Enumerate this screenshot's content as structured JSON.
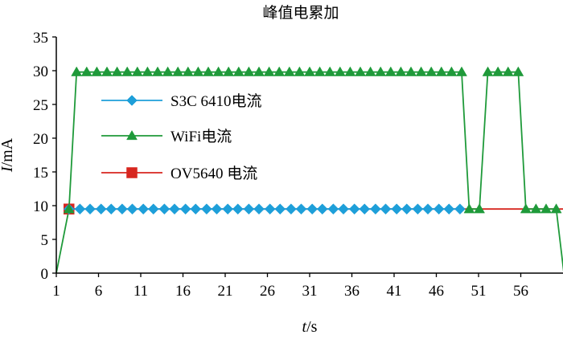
{
  "chart_data": {
    "type": "line",
    "title": "峰值电累加",
    "xlabel": "t/s",
    "ylabel": "I/mA",
    "x_ticks": [
      1,
      6,
      11,
      16,
      21,
      26,
      31,
      36,
      41,
      46,
      51,
      56
    ],
    "y_ticks": [
      0,
      5,
      10,
      15,
      20,
      25,
      30,
      35
    ],
    "xlim": [
      1,
      61
    ],
    "ylim": [
      0,
      35
    ],
    "grid": false,
    "legend": {
      "placement": "center-left"
    },
    "series": [
      {
        "name": "S3C 6410电流",
        "color": "#1e9fd9",
        "marker": "diamond",
        "points": [
          [
            2.5,
            9.5
          ],
          [
            3.8,
            9.5
          ],
          [
            5,
            9.5
          ],
          [
            6.3,
            9.5
          ],
          [
            7.5,
            9.5
          ],
          [
            8.8,
            9.5
          ],
          [
            10,
            9.5
          ],
          [
            11.3,
            9.5
          ],
          [
            12.5,
            9.5
          ],
          [
            13.8,
            9.5
          ],
          [
            15,
            9.5
          ],
          [
            16.3,
            9.5
          ],
          [
            17.5,
            9.5
          ],
          [
            18.8,
            9.5
          ],
          [
            20,
            9.5
          ],
          [
            21.3,
            9.5
          ],
          [
            22.5,
            9.5
          ],
          [
            23.8,
            9.5
          ],
          [
            25,
            9.5
          ],
          [
            26.3,
            9.5
          ],
          [
            27.5,
            9.5
          ],
          [
            28.8,
            9.5
          ],
          [
            30,
            9.5
          ],
          [
            31.3,
            9.5
          ],
          [
            32.5,
            9.5
          ],
          [
            33.8,
            9.5
          ],
          [
            35,
            9.5
          ],
          [
            36.3,
            9.5
          ],
          [
            37.5,
            9.5
          ],
          [
            38.8,
            9.5
          ],
          [
            40,
            9.5
          ],
          [
            41.3,
            9.5
          ],
          [
            42.5,
            9.5
          ],
          [
            43.8,
            9.5
          ],
          [
            45,
            9.5
          ],
          [
            46.3,
            9.5
          ],
          [
            47.5,
            9.5
          ],
          [
            48.8,
            9.5
          ]
        ]
      },
      {
        "name": "WiFi电流",
        "color": "#1f9a3a",
        "marker": "triangle",
        "points": [
          [
            1,
            0
          ],
          [
            2.5,
            9.5
          ],
          [
            3.4,
            29.8
          ],
          [
            4.6,
            29.8
          ],
          [
            5.8,
            29.8
          ],
          [
            7,
            29.8
          ],
          [
            8.2,
            29.8
          ],
          [
            9.4,
            29.8
          ],
          [
            10.6,
            29.8
          ],
          [
            11.8,
            29.8
          ],
          [
            13,
            29.8
          ],
          [
            14.2,
            29.8
          ],
          [
            15.4,
            29.8
          ],
          [
            16.6,
            29.8
          ],
          [
            17.8,
            29.8
          ],
          [
            19,
            29.8
          ],
          [
            20.2,
            29.8
          ],
          [
            21.4,
            29.8
          ],
          [
            22.6,
            29.8
          ],
          [
            23.8,
            29.8
          ],
          [
            25,
            29.8
          ],
          [
            26.2,
            29.8
          ],
          [
            27.4,
            29.8
          ],
          [
            28.6,
            29.8
          ],
          [
            29.8,
            29.8
          ],
          [
            31,
            29.8
          ],
          [
            32.2,
            29.8
          ],
          [
            33.4,
            29.8
          ],
          [
            34.6,
            29.8
          ],
          [
            35.8,
            29.8
          ],
          [
            37,
            29.8
          ],
          [
            38.2,
            29.8
          ],
          [
            39.4,
            29.8
          ],
          [
            40.6,
            29.8
          ],
          [
            41.8,
            29.8
          ],
          [
            43,
            29.8
          ],
          [
            44.2,
            29.8
          ],
          [
            45.4,
            29.8
          ],
          [
            46.6,
            29.8
          ],
          [
            47.8,
            29.8
          ],
          [
            49,
            29.8
          ],
          [
            49.9,
            9.5
          ],
          [
            51.1,
            9.5
          ],
          [
            52.1,
            29.8
          ],
          [
            53.3,
            29.8
          ],
          [
            54.5,
            29.8
          ],
          [
            55.7,
            29.8
          ],
          [
            56.6,
            9.5
          ],
          [
            57.8,
            9.5
          ],
          [
            59,
            9.5
          ],
          [
            60.2,
            9.5
          ],
          [
            61.1,
            0
          ]
        ]
      },
      {
        "name": "OV5640 电流",
        "color": "#d7261f",
        "marker": "square",
        "points": [
          [
            2.5,
            9.5
          ],
          [
            61,
            9.5
          ]
        ]
      }
    ]
  }
}
